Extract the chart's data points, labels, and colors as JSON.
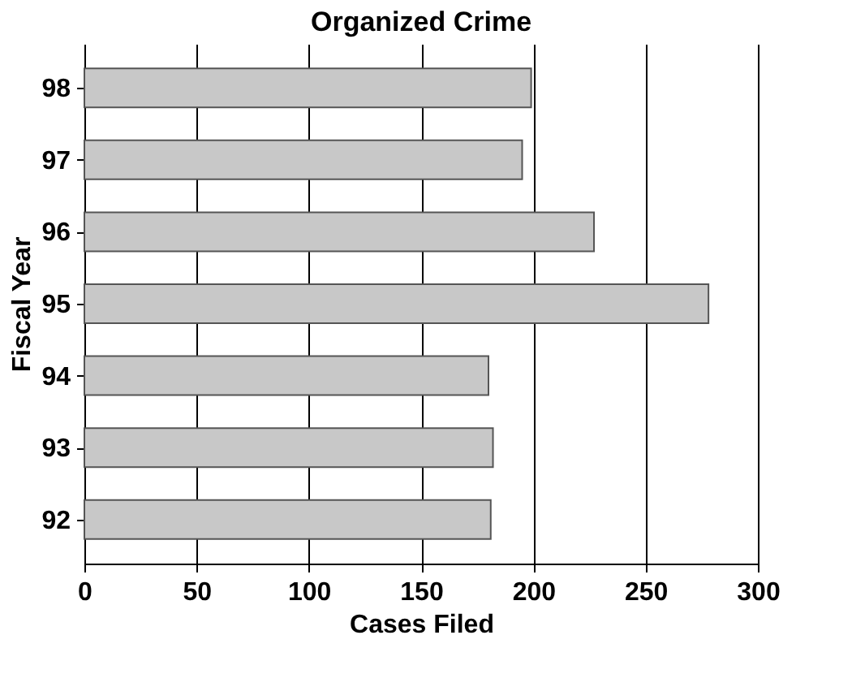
{
  "chart_data": {
    "type": "bar",
    "orientation": "horizontal",
    "title": "Organized Crime",
    "xlabel": "Cases Filed",
    "ylabel": "Fiscal Year",
    "categories": [
      "98",
      "97",
      "96",
      "95",
      "94",
      "93",
      "92"
    ],
    "values": [
      199,
      195,
      227,
      278,
      180,
      182,
      181
    ],
    "color": "#c8c8c8",
    "xlim": [
      0,
      300
    ],
    "xticks": [
      0,
      50,
      100,
      150,
      200,
      250,
      300
    ],
    "grid": "x"
  }
}
